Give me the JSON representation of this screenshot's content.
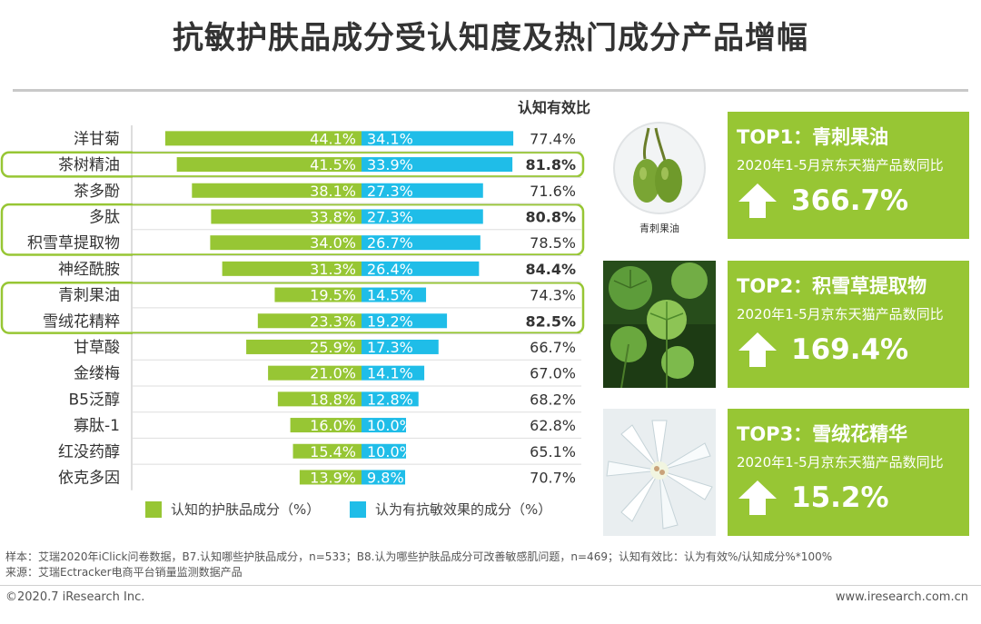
{
  "title": "抗敏护肤品成分受认知度及热门成分产品增幅",
  "chart_data": {
    "type": "bar",
    "column_header": "认知有效比",
    "categories": [
      "洋甘菊",
      "茶树精油",
      "茶多酚",
      "多肽",
      "积雪草提取物",
      "神经酰胺",
      "青刺果油",
      "雪绒花精粹",
      "甘草酸",
      "金缕梅",
      "B5泛醇",
      "寡肽-1",
      "红没药醇",
      "依克多因"
    ],
    "series": [
      {
        "name": "认知的护肤品成分（%）",
        "color": "#97c634",
        "values": [
          44.1,
          41.5,
          38.1,
          33.8,
          34.0,
          31.3,
          19.5,
          23.3,
          25.9,
          21.0,
          18.8,
          16.0,
          15.4,
          13.9
        ],
        "labels": [
          "44.1%",
          "41.5%",
          "38.1%",
          "33.8%",
          "34.0%",
          "31.3%",
          "19.5%",
          "23.3%",
          "25.9%",
          "21.0%",
          "18.8%",
          "16.0%",
          "15.4%",
          "13.9%"
        ]
      },
      {
        "name": "认为有抗敏效果的成分（%）",
        "color": "#1fbde8",
        "values": [
          34.1,
          33.9,
          27.3,
          27.3,
          26.7,
          26.4,
          14.5,
          19.2,
          17.3,
          14.1,
          12.8,
          10.0,
          10.0,
          9.8
        ],
        "labels": [
          "34.1%",
          "33.9%",
          "27.3%",
          "27.3%",
          "26.7%",
          "26.4%",
          "14.5%",
          "19.2%",
          "17.3%",
          "14.1%",
          "12.8%",
          "10.0%",
          "10.0%",
          "9.8%"
        ]
      }
    ],
    "ratios": [
      "77.4%",
      "81.8%",
      "71.6%",
      "80.8%",
      "78.5%",
      "84.4%",
      "74.3%",
      "82.5%",
      "66.7%",
      "67.0%",
      "68.2%",
      "62.8%",
      "65.1%",
      "70.7%"
    ],
    "bold_ratios": [
      1,
      3,
      5,
      7
    ],
    "highlight_groups": [
      [
        1,
        1
      ],
      [
        3,
        4
      ],
      [
        6,
        7
      ]
    ]
  },
  "legend": [
    {
      "label": "认知的护肤品成分（%）",
      "color": "#97c634"
    },
    {
      "label": "认为有抗敏效果的成分（%）",
      "color": "#1fbde8"
    }
  ],
  "cards": [
    {
      "title": "TOP1：青刺果油",
      "subtitle": "2020年1-5月京东天猫产品数同比",
      "value": "366.7%",
      "image_caption": "青刺果油"
    },
    {
      "title": "TOP2：积雪草提取物",
      "subtitle": "2020年1-5月京东天猫产品数同比",
      "value": "169.4%"
    },
    {
      "title": "TOP3：雪绒花精华",
      "subtitle": "2020年1-5月京东天猫产品数同比",
      "value": "15.2%"
    }
  ],
  "footnotes": {
    "sample": "样本：艾瑞2020年iClick问卷数据，B7.认知哪些护肤品成分，n=533；B8.认为哪些护肤品成分可改善敏感肌问题，n=469；认知有效比：认为有效%/认知成分%*100%",
    "source": "来源：艾瑞Ectracker电商平台销量监测数据产品"
  },
  "copyright": "©2020.7 iResearch Inc.",
  "website": "www.iresearch.com.cn",
  "colors": {
    "green": "#97c634",
    "blue": "#1fbde8",
    "card": "#97c634"
  }
}
